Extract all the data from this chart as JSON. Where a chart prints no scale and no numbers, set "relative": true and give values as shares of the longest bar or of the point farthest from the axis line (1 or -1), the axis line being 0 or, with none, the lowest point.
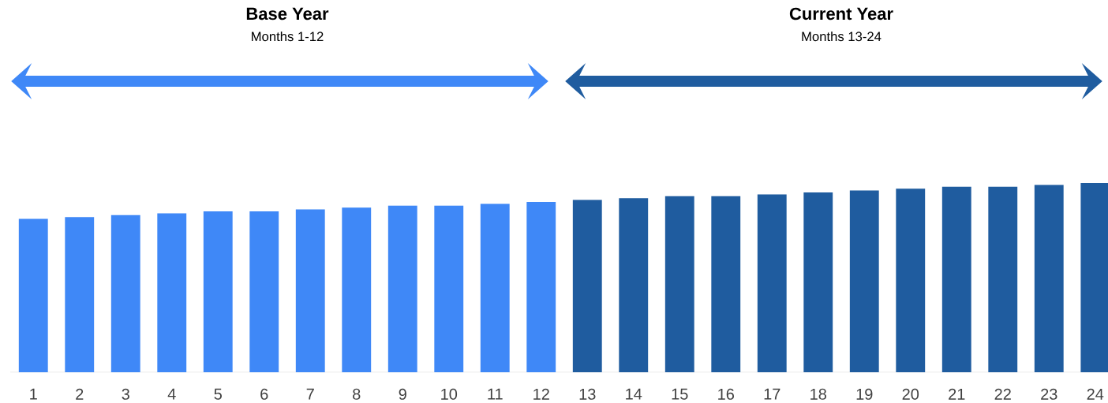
{
  "chart_data": {
    "type": "bar",
    "relative": true,
    "categories": [
      "1",
      "2",
      "3",
      "4",
      "5",
      "6",
      "7",
      "8",
      "9",
      "10",
      "11",
      "12",
      "13",
      "14",
      "15",
      "16",
      "17",
      "18",
      "19",
      "20",
      "21",
      "22",
      "23",
      "24"
    ],
    "values": [
      0.81,
      0.82,
      0.83,
      0.84,
      0.85,
      0.85,
      0.86,
      0.87,
      0.88,
      0.88,
      0.89,
      0.9,
      0.91,
      0.92,
      0.93,
      0.93,
      0.94,
      0.95,
      0.96,
      0.97,
      0.98,
      0.98,
      0.99,
      1
    ],
    "colors": [
      "#3f88f7",
      "#3f88f7",
      "#3f88f7",
      "#3f88f7",
      "#3f88f7",
      "#3f88f7",
      "#3f88f7",
      "#3f88f7",
      "#3f88f7",
      "#3f88f7",
      "#3f88f7",
      "#3f88f7",
      "#1f5c9f",
      "#1f5c9f",
      "#1f5c9f",
      "#1f5c9f",
      "#1f5c9f",
      "#1f5c9f",
      "#1f5c9f",
      "#1f5c9f",
      "#1f5c9f",
      "#1f5c9f",
      "#1f5c9f",
      "#1f5c9f"
    ],
    "annotations": [
      "**Base Year**",
      "Months 1-12",
      "**Current Year**",
      "Months 13-24"
    ]
  }
}
